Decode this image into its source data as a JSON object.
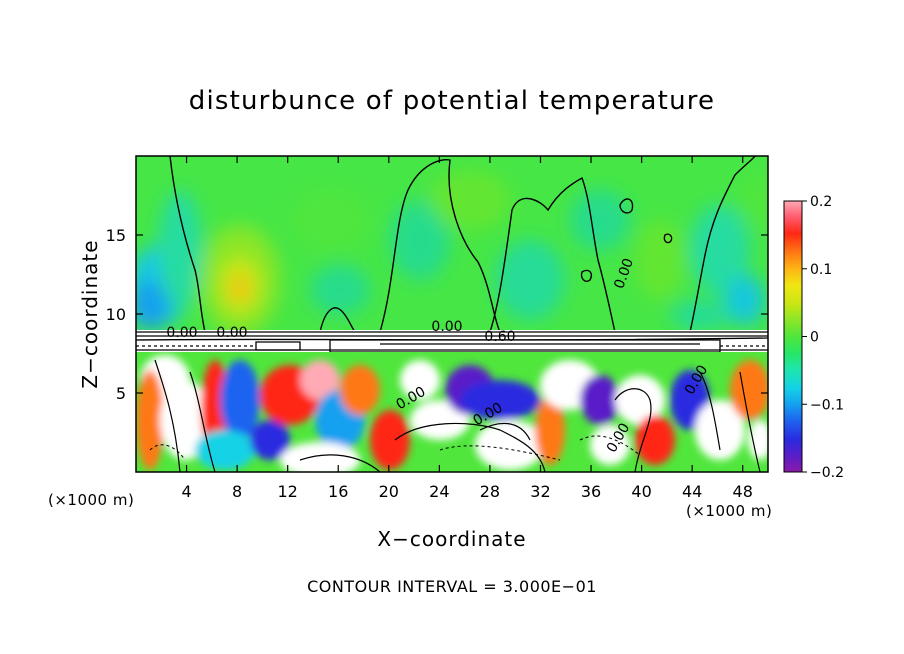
{
  "chart_data": {
    "type": "heatmap",
    "title": "disturbunce of potential temperature",
    "xlabel": "X−coordinate",
    "ylabel": "Z−coordinate",
    "x_unit_left": "(×1000 m)",
    "x_unit_right": "(×1000 m)",
    "x_ticks": [
      4,
      8,
      12,
      16,
      20,
      24,
      28,
      32,
      36,
      40,
      44,
      48
    ],
    "x_tick_labels": [
      "4",
      "8",
      "12",
      "16",
      "20",
      "24",
      "28",
      "32",
      "36",
      "40",
      "44",
      "48"
    ],
    "y_ticks": [
      5,
      10,
      15
    ],
    "y_tick_labels": [
      "5",
      "10",
      "15"
    ],
    "xlim": [
      0,
      50
    ],
    "ylim": [
      0,
      20
    ],
    "colorbar": {
      "range": [
        -0.2,
        0.2
      ],
      "ticks": [
        -0.2,
        -0.1,
        0,
        0.1,
        0.2
      ],
      "tick_labels": [
        "−0.2",
        "−0.1",
        "0",
        "0.1",
        "0.2"
      ],
      "colors": [
        "#8a1aa8",
        "#5a1ec8",
        "#2a2ae0",
        "#1e64f0",
        "#14a0f0",
        "#14d2e6",
        "#1ee6aa",
        "#28e664",
        "#50e63c",
        "#8ae628",
        "#c8e614",
        "#f0e614",
        "#ffb414",
        "#ff7814",
        "#ff2814",
        "#ff5a6e",
        "#ffaab4"
      ]
    },
    "contour_labels": [
      "0.00",
      "0.00",
      "0.00",
      "0.60",
      "0.00",
      "0.00",
      "0.00",
      "0.00",
      "0.00"
    ],
    "grid": false,
    "legend": "right"
  },
  "footer_text": "CONTOUR INTERVAL = 3.000E−01"
}
